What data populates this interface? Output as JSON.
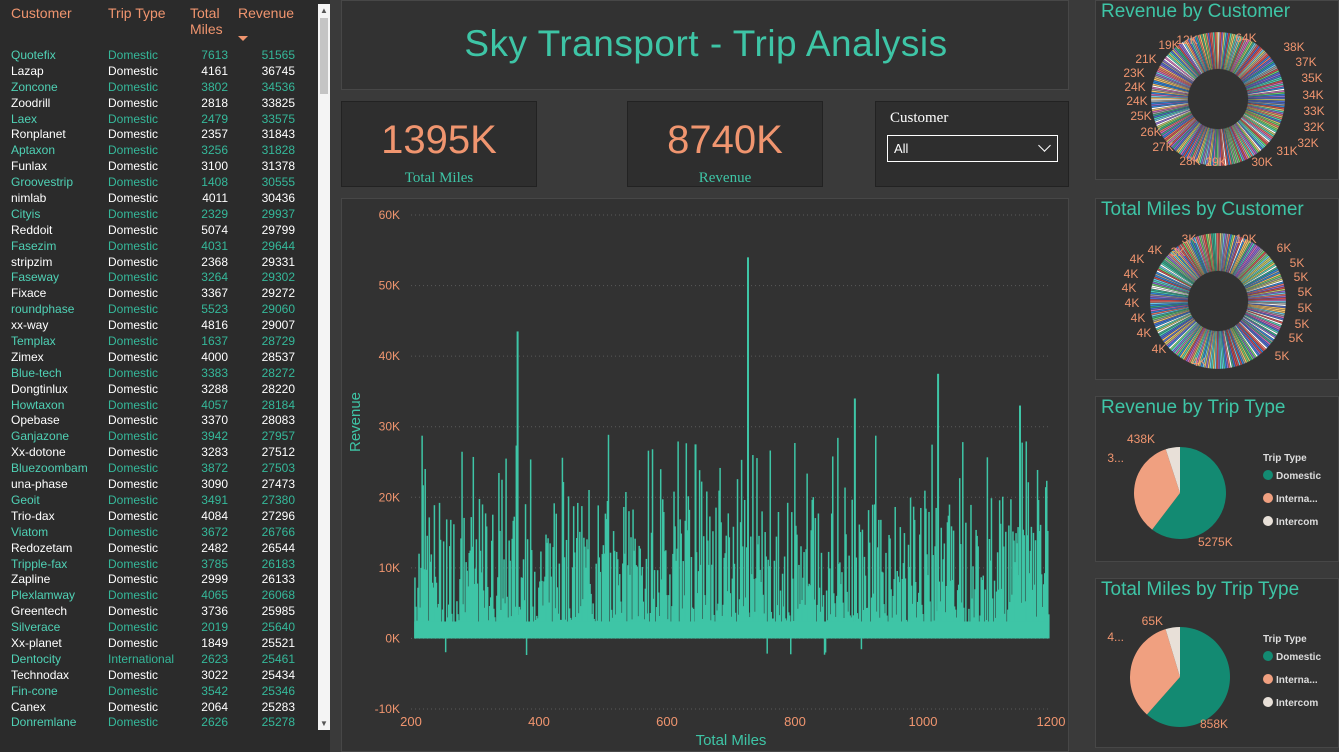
{
  "table": {
    "headers": {
      "customer": "Customer",
      "trip_type": "Trip Type",
      "total_miles": "Total Miles",
      "revenue": "Revenue"
    },
    "rows": [
      [
        "Quotefix",
        "Domestic",
        "7613",
        "51565"
      ],
      [
        "Lazap",
        "Domestic",
        "4161",
        "36745"
      ],
      [
        "Zoncone",
        "Domestic",
        "3802",
        "34536"
      ],
      [
        "Zoodrill",
        "Domestic",
        "2818",
        "33825"
      ],
      [
        "Laex",
        "Domestic",
        "2479",
        "33575"
      ],
      [
        "Ronplanet",
        "Domestic",
        "2357",
        "31843"
      ],
      [
        "Aptaxon",
        "Domestic",
        "3256",
        "31828"
      ],
      [
        "Funlax",
        "Domestic",
        "3100",
        "31378"
      ],
      [
        "Groovestrip",
        "Domestic",
        "1408",
        "30555"
      ],
      [
        "nimlab",
        "Domestic",
        "4011",
        "30436"
      ],
      [
        "Cityis",
        "Domestic",
        "2329",
        "29937"
      ],
      [
        "Reddoit",
        "Domestic",
        "5074",
        "29799"
      ],
      [
        "Fasezim",
        "Domestic",
        "4031",
        "29644"
      ],
      [
        "stripzim",
        "Domestic",
        "2368",
        "29331"
      ],
      [
        "Faseway",
        "Domestic",
        "3264",
        "29302"
      ],
      [
        "Fixace",
        "Domestic",
        "3367",
        "29272"
      ],
      [
        "roundphase",
        "Domestic",
        "5523",
        "29060"
      ],
      [
        "xx-way",
        "Domestic",
        "4816",
        "29007"
      ],
      [
        "Templax",
        "Domestic",
        "1637",
        "28729"
      ],
      [
        "Zimex",
        "Domestic",
        "4000",
        "28537"
      ],
      [
        "Blue-tech",
        "Domestic",
        "3383",
        "28272"
      ],
      [
        "Dongtinlux",
        "Domestic",
        "3288",
        "28220"
      ],
      [
        "Howtaxon",
        "Domestic",
        "4057",
        "28184"
      ],
      [
        "Opebase",
        "Domestic",
        "3370",
        "28083"
      ],
      [
        "Ganjazone",
        "Domestic",
        "3942",
        "27957"
      ],
      [
        "Xx-dotone",
        "Domestic",
        "3283",
        "27512"
      ],
      [
        "Bluezoombam",
        "Domestic",
        "3872",
        "27503"
      ],
      [
        "una-phase",
        "Domestic",
        "3090",
        "27473"
      ],
      [
        "Geoit",
        "Domestic",
        "3491",
        "27380"
      ],
      [
        "Trio-dax",
        "Domestic",
        "4084",
        "27296"
      ],
      [
        "Viatom",
        "Domestic",
        "3672",
        "26766"
      ],
      [
        "Redozetam",
        "Domestic",
        "2482",
        "26544"
      ],
      [
        "Tripple-fax",
        "Domestic",
        "3785",
        "26183"
      ],
      [
        "Zapline",
        "Domestic",
        "2999",
        "26133"
      ],
      [
        "Plexlamway",
        "Domestic",
        "4065",
        "26068"
      ],
      [
        "Greentech",
        "Domestic",
        "3736",
        "25985"
      ],
      [
        "Silverace",
        "Domestic",
        "2019",
        "25640"
      ],
      [
        "Xx-planet",
        "Domestic",
        "1849",
        "25521"
      ],
      [
        "Dentocity",
        "International",
        "2623",
        "25461"
      ],
      [
        "Technodax",
        "Domestic",
        "3022",
        "25434"
      ],
      [
        "Fin-cone",
        "Domestic",
        "3542",
        "25346"
      ],
      [
        "Canex",
        "Domestic",
        "2064",
        "25283"
      ],
      [
        "Donremlane",
        "Domestic",
        "2626",
        "25278"
      ]
    ]
  },
  "title": "Sky Transport - Trip Analysis",
  "kpis": [
    {
      "value": "1395K",
      "label": "Total Miles"
    },
    {
      "value": "8740K",
      "label": "Revenue"
    }
  ],
  "slicer": {
    "title": "Customer",
    "value": "All"
  },
  "colors": {
    "teal": "#3ec5a6",
    "salmon": "#f0956f",
    "dark_teal": "#138a72",
    "light": "#e8e0d8"
  },
  "chart_data": [
    {
      "type": "bar",
      "title": "",
      "xlabel": "Total Miles",
      "ylabel": "Revenue",
      "xlim": [
        200,
        1200
      ],
      "ylim": [
        -10000,
        60000
      ],
      "x_ticks": [
        "200",
        "400",
        "600",
        "800",
        "1000",
        "1200"
      ],
      "y_ticks": [
        "60K",
        "50K",
        "40K",
        "30K",
        "20K",
        "10K",
        "0K",
        "-10K"
      ],
      "peaks": [
        {
          "x": 365,
          "y": 43500
        },
        {
          "x": 725,
          "y": 54000
        },
        {
          "x": 1022,
          "y": 37500
        },
        {
          "x": 892,
          "y": 34000
        },
        {
          "x": 1150,
          "y": 33000
        },
        {
          "x": 643,
          "y": 27500
        }
      ],
      "typical_range": [
        2000,
        20000
      ]
    },
    {
      "type": "pie",
      "title": "Revenue by Customer",
      "labels": [
        "12K",
        "64K",
        "38K",
        "37K",
        "35K",
        "34K",
        "33K",
        "32K",
        "32K",
        "31K",
        "30K",
        "29K",
        "28K",
        "27K",
        "26K",
        "25K",
        "24K",
        "24K",
        "23K",
        "21K",
        "19K"
      ]
    },
    {
      "type": "pie",
      "title": "Total Miles by Customer",
      "labels": [
        "3K",
        "10K",
        "6K",
        "5K",
        "5K",
        "5K",
        "5K",
        "5K",
        "5K",
        "5K",
        "4K",
        "4K",
        "4K",
        "4K",
        "4K",
        "4K",
        "4K",
        "4K",
        "4K",
        "3K"
      ]
    },
    {
      "type": "pie",
      "title": "Revenue by Trip Type",
      "legend_title": "Trip Type",
      "series": [
        {
          "name": "Domestic",
          "value": 5275,
          "label": "5275K",
          "color": "#138a72"
        },
        {
          "name": "Interna...",
          "value": 3027,
          "label": "3...",
          "color": "#f0a080"
        },
        {
          "name": "Intercom",
          "value": 438,
          "label": "438K",
          "color": "#e8e0d8"
        }
      ]
    },
    {
      "type": "pie",
      "title": "Total Miles by Trip Type",
      "legend_title": "Trip Type",
      "series": [
        {
          "name": "Domestic",
          "value": 858,
          "label": "858K",
          "color": "#138a72"
        },
        {
          "name": "Interna...",
          "value": 472,
          "label": "4...",
          "color": "#f0a080"
        },
        {
          "name": "Intercom",
          "value": 65,
          "label": "65K",
          "color": "#e8e0d8"
        }
      ]
    }
  ]
}
